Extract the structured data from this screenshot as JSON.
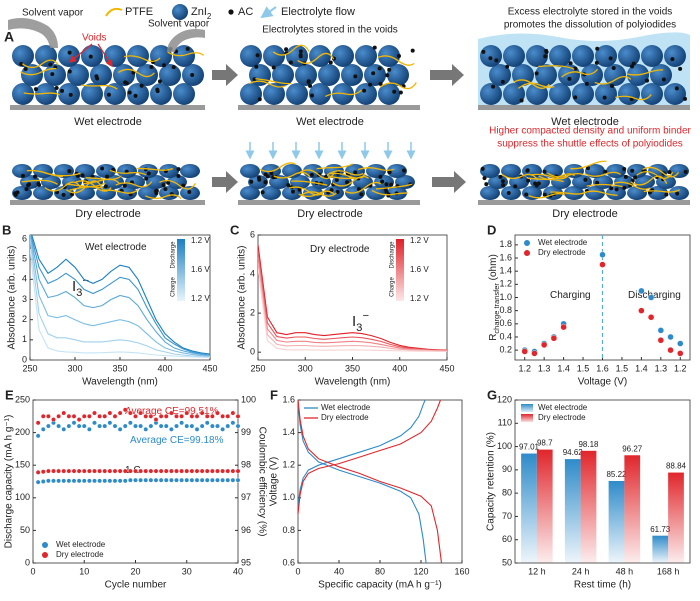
{
  "schematic": {
    "panel": "A",
    "legend": {
      "ptfe": "PTFE",
      "zni": "ZnI",
      "zni_sub": "2",
      "ac": "AC",
      "flow": "Electrolyte flow"
    },
    "solvent_vapor": [
      "Solvent vapor",
      "Solvent vapor"
    ],
    "voids": "Voids",
    "stored": "Electrolytes stored in the voids",
    "excess": [
      "Excess electrolyte stored in the voids",
      "promotes the dissolution of polyiodides"
    ],
    "dry_note": [
      "Higher compacted density and uniform binder",
      "suppress the shuttle effects of polyiodides"
    ],
    "wet_captions": [
      "Wet electrode",
      "Wet electrode",
      "Wet electrode"
    ],
    "dry_captions": [
      "Dry electrode",
      "Dry electrode",
      "Dry electrode"
    ]
  },
  "chart_data": [
    {
      "type": "line",
      "panel": "B",
      "x_label": "Wavelength (nm)",
      "y_label": "Absorbance (arb. units)",
      "annotations": [
        {
          "text": "Wet electrode"
        },
        {
          "text": "I",
          "sub": "3",
          "sup": "−"
        }
      ],
      "colorbar": {
        "labels": [
          "1.2 V",
          "1.6 V",
          "1.2 V"
        ],
        "top": "Discharge",
        "bottom": "Charge",
        "colors": [
          "#1a7fc4",
          "#e8f4fb"
        ]
      },
      "xlim": [
        250,
        450
      ],
      "xticks": [
        250,
        300,
        350,
        400,
        450
      ],
      "ylim": [
        0,
        6.2
      ],
      "yticks": [
        0,
        1,
        2,
        3,
        4,
        5,
        6
      ],
      "x": [
        250,
        260,
        270,
        280,
        290,
        300,
        310,
        320,
        330,
        340,
        350,
        360,
        370,
        380,
        390,
        400,
        410,
        420,
        430,
        440,
        450
      ],
      "series": [
        {
          "color": "#1a7fc4",
          "values": [
            6.5,
            5.0,
            4.3,
            4.6,
            5.0,
            4.6,
            4.0,
            3.8,
            4.0,
            4.4,
            4.7,
            4.6,
            4.0,
            3.0,
            2.0,
            1.3,
            0.9,
            0.6,
            0.45,
            0.35,
            0.3
          ]
        },
        {
          "color": "#3a95d0",
          "values": [
            6.4,
            4.6,
            3.8,
            4.0,
            4.3,
            4.0,
            3.5,
            3.3,
            3.5,
            3.8,
            4.1,
            4.0,
            3.5,
            2.6,
            1.8,
            1.1,
            0.8,
            0.55,
            0.4,
            0.3,
            0.25
          ]
        },
        {
          "color": "#5aa8da",
          "values": [
            6.3,
            4.0,
            3.1,
            3.2,
            3.4,
            3.1,
            2.7,
            2.6,
            2.7,
            3.0,
            3.2,
            3.1,
            2.7,
            2.0,
            1.4,
            0.9,
            0.6,
            0.45,
            0.35,
            0.28,
            0.22
          ]
        },
        {
          "color": "#7dbde4",
          "values": [
            6.2,
            3.2,
            2.2,
            2.1,
            2.2,
            2.0,
            1.8,
            1.7,
            1.8,
            1.9,
            2.0,
            1.9,
            1.7,
            1.3,
            0.9,
            0.6,
            0.45,
            0.35,
            0.28,
            0.22,
            0.18
          ]
        },
        {
          "color": "#a2d1ee",
          "values": [
            6.0,
            2.3,
            1.3,
            1.1,
            1.1,
            1.0,
            0.9,
            0.9,
            0.9,
            0.95,
            1.0,
            0.95,
            0.85,
            0.7,
            0.5,
            0.4,
            0.3,
            0.25,
            0.2,
            0.17,
            0.15
          ]
        },
        {
          "color": "#c6e4f6",
          "values": [
            5.5,
            1.5,
            0.6,
            0.45,
            0.4,
            0.38,
            0.35,
            0.35,
            0.36,
            0.38,
            0.4,
            0.38,
            0.35,
            0.3,
            0.25,
            0.22,
            0.2,
            0.18,
            0.16,
            0.14,
            0.13
          ]
        }
      ]
    },
    {
      "type": "line",
      "panel": "C",
      "x_label": "Wavelength (nm)",
      "y_label": "Absorbance (arb. units)",
      "annotations": [
        {
          "text": "Dry electrode"
        },
        {
          "text": "I",
          "sub": "3",
          "sup": "−"
        }
      ],
      "colorbar": {
        "labels": [
          "1.2 V",
          "1.6 V",
          "1.2 V"
        ],
        "top": "Discharge",
        "bottom": "Charge",
        "colors": [
          "#e01f26",
          "#fde8e8"
        ]
      },
      "xlim": [
        250,
        450
      ],
      "xticks": [
        250,
        300,
        350,
        400,
        450
      ],
      "ylim": [
        -0.4,
        6
      ],
      "yticks": [
        0,
        2,
        4,
        6
      ],
      "x": [
        250,
        260,
        270,
        280,
        290,
        300,
        310,
        320,
        330,
        340,
        350,
        360,
        370,
        380,
        390,
        400,
        410,
        420,
        430,
        440,
        450
      ],
      "series": [
        {
          "color": "#e01f26",
          "values": [
            5.5,
            1.8,
            1.0,
            0.9,
            1.0,
            1.0,
            0.9,
            0.85,
            0.9,
            0.95,
            1.0,
            0.95,
            0.85,
            0.7,
            0.5,
            0.35,
            0.25,
            0.2,
            0.15,
            0.12,
            0.1
          ]
        },
        {
          "color": "#e8555a",
          "values": [
            5.2,
            1.5,
            0.8,
            0.72,
            0.78,
            0.78,
            0.7,
            0.66,
            0.7,
            0.74,
            0.78,
            0.74,
            0.66,
            0.55,
            0.4,
            0.28,
            0.2,
            0.16,
            0.12,
            0.1,
            0.08
          ]
        },
        {
          "color": "#ef8285",
          "values": [
            4.9,
            1.2,
            0.6,
            0.52,
            0.56,
            0.56,
            0.5,
            0.48,
            0.5,
            0.53,
            0.56,
            0.53,
            0.48,
            0.4,
            0.3,
            0.22,
            0.16,
            0.13,
            0.1,
            0.08,
            0.07
          ]
        },
        {
          "color": "#f5aeb0",
          "values": [
            4.6,
            0.9,
            0.4,
            0.32,
            0.34,
            0.34,
            0.31,
            0.3,
            0.31,
            0.33,
            0.34,
            0.33,
            0.3,
            0.26,
            0.2,
            0.15,
            0.12,
            0.1,
            0.08,
            0.07,
            0.06
          ]
        },
        {
          "color": "#f9d2d3",
          "values": [
            4.3,
            0.6,
            0.2,
            0.12,
            0.12,
            0.12,
            0.11,
            0.1,
            0.1,
            0.11,
            0.12,
            0.11,
            0.1,
            0.09,
            0.08,
            0.07,
            0.06,
            0.05,
            0.05,
            0.04,
            0.04
          ]
        }
      ]
    },
    {
      "type": "scatter",
      "panel": "D",
      "x_label": "Voltage (V)",
      "y_label": {
        "main": "R",
        "sub": "charge transfer",
        "unit": " (ohm)"
      },
      "legend": "upper left",
      "annotations": [
        {
          "text": "Charging"
        },
        {
          "text": "Discharging"
        }
      ],
      "xlim": [
        1.15,
        1.6
      ],
      "xticks": [
        1.2,
        1.3,
        1.4,
        1.5,
        1.6
      ],
      "x2lim": [
        1.6,
        1.15
      ],
      "x2ticks": [
        1.5,
        1.4,
        1.3,
        1.2
      ],
      "ylim": [
        0.05,
        1.95
      ],
      "yticks": [
        0.2,
        0.4,
        0.6,
        0.8,
        {
          "value": 1,
          "label": "1.0"
        },
        1.2,
        1.4,
        1.6,
        1.8
      ],
      "series": [
        {
          "name": "Wet electrode",
          "color": "#2e8bc9",
          "charging": {
            "x": [
              1.2,
              1.25,
              1.3,
              1.35,
              1.4,
              1.6
            ],
            "values": [
              0.2,
              0.18,
              0.3,
              0.4,
              0.6,
              1.65
            ]
          },
          "discharging": {
            "x": [
              1.4,
              1.35,
              1.3,
              1.25,
              1.2
            ],
            "values": [
              1.1,
              1.0,
              0.5,
              0.4,
              0.3
            ]
          }
        },
        {
          "name": "Dry electrode",
          "color": "#e0262b",
          "charging": {
            "x": [
              1.2,
              1.25,
              1.3,
              1.35,
              1.4,
              1.6
            ],
            "values": [
              0.18,
              0.15,
              0.28,
              0.38,
              0.55,
              1.5
            ]
          },
          "discharging": {
            "x": [
              1.4,
              1.35,
              1.3,
              1.25,
              1.2
            ],
            "values": [
              0.8,
              0.7,
              0.35,
              0.2,
              0.15
            ]
          }
        }
      ]
    },
    {
      "type": "scatter",
      "panel": "E",
      "x_label": "Cycle number",
      "y_label": "Discharge capacity (mA h g⁻¹)",
      "y2_label": "Coulombic efficiency (%)",
      "legend": "lower left",
      "annotations": [
        {
          "text": "Average CE=99.51%",
          "color": "#e0262b"
        },
        {
          "text": "Average CE=99.18%",
          "color": "#2e8bc9"
        },
        {
          "text": "1 C",
          "color": "#222222"
        }
      ],
      "xlim": [
        0,
        40
      ],
      "xticks": [
        0,
        10,
        20,
        30,
        40
      ],
      "ylim": [
        0,
        250
      ],
      "yticks": [
        0,
        50,
        100,
        150,
        200,
        250
      ],
      "y2lim": [
        95,
        100
      ],
      "y2ticks": [
        95,
        96,
        97,
        98,
        99,
        100
      ],
      "x": [
        1,
        2,
        3,
        4,
        5,
        6,
        7,
        8,
        9,
        10,
        11,
        12,
        13,
        14,
        15,
        16,
        17,
        18,
        19,
        20,
        21,
        22,
        23,
        24,
        25,
        26,
        27,
        28,
        29,
        30,
        31,
        32,
        33,
        34,
        35,
        36,
        37,
        38,
        39,
        40
      ],
      "series": [
        {
          "name": "Wet electrode",
          "color": "#2e8bc9",
          "values": [
            124,
            125,
            126,
            126,
            126,
            126,
            126,
            126,
            126,
            126,
            126,
            126,
            126,
            126,
            126,
            126,
            126,
            126,
            127,
            127,
            127,
            127,
            127,
            127,
            127,
            127,
            127,
            127,
            127,
            127,
            127,
            127,
            127,
            127,
            127,
            127,
            127,
            127,
            127,
            127
          ]
        },
        {
          "name": "Dry electrode",
          "color": "#e0262b",
          "values": [
            139,
            140,
            141,
            141,
            141,
            141,
            141,
            141,
            141,
            141,
            141,
            141,
            141,
            141,
            141,
            141,
            141,
            141,
            141,
            141,
            141,
            141,
            141,
            141,
            141,
            141,
            141,
            141,
            141,
            141,
            141,
            141,
            141,
            141,
            141,
            141,
            141,
            141,
            141,
            141
          ]
        },
        {
          "color": "#2e8bc9",
          "axis": "y2",
          "values": [
            98.9,
            99.1,
            99.2,
            99.3,
            99.2,
            99.1,
            99.2,
            99.3,
            99.2,
            99.2,
            99.1,
            99.3,
            99.2,
            99.2,
            99.3,
            99.2,
            99.1,
            99.2,
            99.3,
            99.2,
            99.2,
            99.1,
            99.2,
            99.3,
            99.2,
            99.2,
            99.1,
            99.2,
            99.3,
            99.2,
            99.2,
            99.1,
            99.2,
            99.3,
            99.2,
            99.2,
            99.1,
            99.2,
            99.3,
            99.2
          ]
        },
        {
          "color": "#e0262b",
          "axis": "y2",
          "values": [
            99.3,
            99.5,
            99.5,
            99.4,
            99.5,
            99.6,
            99.5,
            99.5,
            99.4,
            99.5,
            99.5,
            99.6,
            99.5,
            99.5,
            99.6,
            99.5,
            99.6,
            99.7,
            99.6,
            99.5,
            99.6,
            99.5,
            99.5,
            99.4,
            99.5,
            99.5,
            99.6,
            99.5,
            99.5,
            99.6,
            99.5,
            99.5,
            99.6,
            99.5,
            99.5,
            99.6,
            99.5,
            99.5,
            99.6,
            99.5
          ]
        }
      ]
    },
    {
      "type": "line",
      "panel": "F",
      "x_label": "Specific capacity (mA h g⁻¹)",
      "y_label": "Voltage (V)",
      "legend": "upper left",
      "xlim": [
        0,
        160
      ],
      "xticks": [
        0,
        40,
        80,
        120,
        160
      ],
      "ylim": [
        0.6,
        1.6
      ],
      "yticks": [
        0.6,
        0.8,
        {
          "value": 1,
          "label": "1.0"
        },
        1.2,
        1.4,
        1.6
      ],
      "series": [
        {
          "name": "Wet electrode",
          "color": "#2e8bc9",
          "discharge": {
            "x": [
              0,
              2,
              5,
              10,
              20,
              40,
              60,
              80,
              100,
              110,
              118,
              122,
              125
            ],
            "values": [
              1.6,
              1.45,
              1.35,
              1.28,
              1.22,
              1.17,
              1.13,
              1.09,
              1.04,
              1.0,
              0.9,
              0.75,
              0.6
            ]
          },
          "charge": {
            "x": [
              0,
              2,
              5,
              10,
              20,
              40,
              60,
              80,
              100,
              110,
              118,
              122,
              124
            ],
            "values": [
              0.95,
              1.05,
              1.12,
              1.17,
              1.2,
              1.24,
              1.28,
              1.32,
              1.38,
              1.43,
              1.5,
              1.57,
              1.6
            ]
          }
        },
        {
          "name": "Dry electrode",
          "color": "#e0262b",
          "discharge": {
            "x": [
              0,
              2,
              5,
              10,
              20,
              40,
              60,
              80,
              100,
              120,
              130,
              136,
              140
            ],
            "values": [
              1.6,
              1.48,
              1.38,
              1.3,
              1.24,
              1.19,
              1.15,
              1.1,
              1.06,
              1.01,
              0.95,
              0.8,
              0.6
            ]
          },
          "charge": {
            "x": [
              0,
              2,
              5,
              10,
              20,
              40,
              60,
              80,
              100,
              120,
              130,
              136,
              139
            ],
            "values": [
              0.9,
              1.02,
              1.1,
              1.15,
              1.18,
              1.21,
              1.25,
              1.29,
              1.33,
              1.4,
              1.47,
              1.55,
              1.6
            ]
          }
        }
      ]
    },
    {
      "type": "bar",
      "panel": "G",
      "x_label": "Rest time (h)",
      "y_label": "Capacity retention (%)",
      "legend": "upper left",
      "categories": [
        "12 h",
        "24 h",
        "48 h",
        "168 h"
      ],
      "ylim": [
        50,
        120
      ],
      "yticks": [
        50,
        60,
        70,
        80,
        90,
        100,
        110,
        120
      ],
      "series": [
        {
          "name": "Wet electrode",
          "color": "#2e8bc9",
          "values": [
            97.01,
            94.62,
            85.22,
            61.73
          ]
        },
        {
          "name": "Dry electrode",
          "color": "#e0262b",
          "values": [
            98.7,
            98.18,
            96.27,
            88.84
          ]
        }
      ]
    }
  ]
}
